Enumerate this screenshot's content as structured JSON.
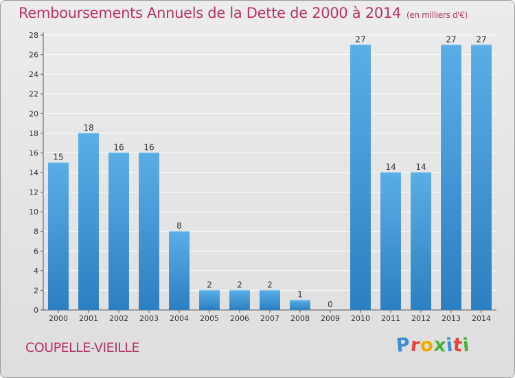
{
  "header": {
    "title": "Remboursements Annuels de la Dette de 2000 à 2014",
    "unit": "(en milliers d'€)"
  },
  "footer": {
    "commune": "COUPELLE-VIEILLE",
    "logo_letters": [
      "P",
      "r",
      "o",
      "x",
      "i",
      "t",
      "i"
    ],
    "logo_colors": [
      "#3a8fd8",
      "#e8433a",
      "#f2a900",
      "#4caf3c",
      "#3a8fd8",
      "#e8433a",
      "#4caf3c"
    ]
  },
  "colors": {
    "bar_light": "#5aaee6",
    "bar_dark": "#2c7fc1",
    "title": "#b5336a",
    "axis_text": "#333333",
    "grid": "#ffffff"
  },
  "chart_data": {
    "type": "bar",
    "categories": [
      "2000",
      "2001",
      "2002",
      "2003",
      "2004",
      "2005",
      "2006",
      "2007",
      "2008",
      "2009",
      "2010",
      "2011",
      "2012",
      "2013",
      "2014"
    ],
    "values": [
      15,
      18,
      16,
      16,
      8,
      2,
      2,
      2,
      1,
      0,
      27,
      14,
      14,
      27,
      27
    ],
    "ylim": [
      0,
      28
    ],
    "yticks": [
      0,
      2,
      4,
      6,
      8,
      10,
      12,
      14,
      16,
      18,
      20,
      22,
      24,
      26,
      28
    ],
    "grid": true,
    "data_labels": true
  }
}
